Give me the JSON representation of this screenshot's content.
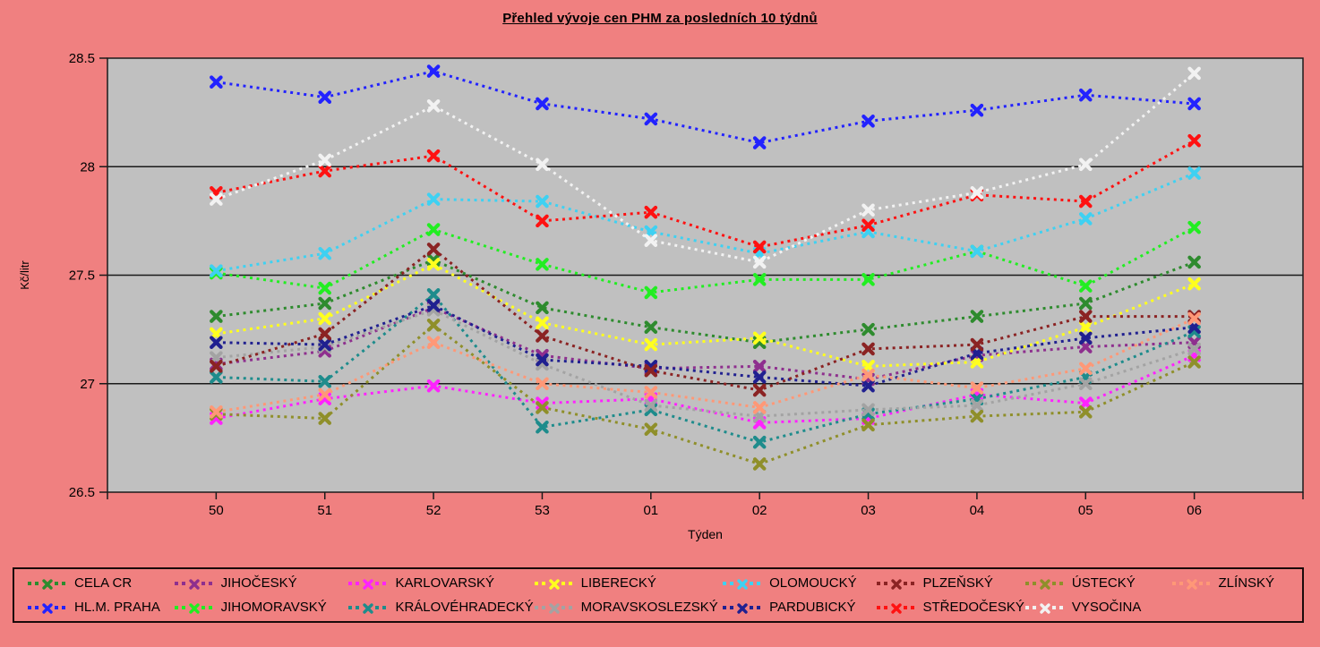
{
  "page": {
    "background_color": "#F08080",
    "plot_background_color": "#C0C0C0",
    "axis_color": "#1a1a1a",
    "gridline_color": "#1a1a1a"
  },
  "title": "Přehled vývoje cen PHM za posledních 10 týdnů",
  "chart_data": {
    "type": "line",
    "title": "Přehled vývoje cen PHM za posledních 10 týdnů",
    "xlabel": "Týden",
    "ylabel": "Kč/litr",
    "ylim": [
      26.5,
      28.5
    ],
    "yticks": [
      26.5,
      27,
      27.5,
      28,
      28.5
    ],
    "ytick_labels": [
      "26.5",
      "27",
      "27.5",
      "28",
      "28.5"
    ],
    "gridlines": [
      27,
      27.5,
      28
    ],
    "grid": "horizontal",
    "categories": [
      "50",
      "51",
      "52",
      "53",
      "01",
      "02",
      "03",
      "04",
      "05",
      "06"
    ],
    "legend_position": "bottom",
    "line_style": "dotted",
    "marker": "x",
    "series": [
      {
        "name": "CELA CR",
        "color": "#2E8B2E",
        "values": [
          27.31,
          27.37,
          27.57,
          27.35,
          27.26,
          27.19,
          27.25,
          27.31,
          27.37,
          27.56
        ]
      },
      {
        "name": "HL.M. PRAHA",
        "color": "#2222FF",
        "values": [
          28.39,
          28.32,
          28.44,
          28.29,
          28.22,
          28.11,
          28.21,
          28.26,
          28.33,
          28.29
        ]
      },
      {
        "name": "JIHOČESKÝ",
        "color": "#8E2F8E",
        "values": [
          27.09,
          27.15,
          27.35,
          27.13,
          27.07,
          27.08,
          27.02,
          27.13,
          27.17,
          27.19
        ]
      },
      {
        "name": "JIHOMORAVSKÝ",
        "color": "#21EE21",
        "values": [
          27.51,
          27.44,
          27.71,
          27.55,
          27.42,
          27.48,
          27.48,
          27.61,
          27.45,
          27.72
        ]
      },
      {
        "name": "KARLOVARSKÝ",
        "color": "#FF22FF",
        "values": [
          26.84,
          26.93,
          26.99,
          26.91,
          26.93,
          26.82,
          26.84,
          26.95,
          26.91,
          27.13
        ]
      },
      {
        "name": "KRÁLOVÉHRADECKÝ",
        "color": "#1E8C8C",
        "values": [
          27.03,
          27.01,
          27.41,
          26.8,
          26.88,
          26.73,
          26.86,
          26.93,
          27.03,
          27.24
        ]
      },
      {
        "name": "LIBERECKÝ",
        "color": "#FFFF1E",
        "values": [
          27.23,
          27.3,
          27.55,
          27.28,
          27.18,
          27.21,
          27.08,
          27.1,
          27.26,
          27.46
        ]
      },
      {
        "name": "MORAVSKOSLEZSKÝ",
        "color": "#A3A3A3",
        "values": [
          27.12,
          27.17,
          27.34,
          27.09,
          26.9,
          26.85,
          26.88,
          26.9,
          27.0,
          27.16
        ]
      },
      {
        "name": "OLOMOUCKÝ",
        "color": "#3ED1F2",
        "values": [
          27.52,
          27.6,
          27.85,
          27.84,
          27.7,
          27.6,
          27.7,
          27.61,
          27.76,
          27.97
        ]
      },
      {
        "name": "PARDUBICKÝ",
        "color": "#202090",
        "values": [
          27.19,
          27.18,
          27.36,
          27.11,
          27.08,
          27.03,
          26.99,
          27.14,
          27.21,
          27.26
        ]
      },
      {
        "name": "PLZEŇSKÝ",
        "color": "#8B2323",
        "values": [
          27.08,
          27.23,
          27.62,
          27.22,
          27.06,
          26.97,
          27.16,
          27.18,
          27.31,
          27.31
        ]
      },
      {
        "name": "STŘEDOČESKÝ",
        "color": "#FF1111",
        "values": [
          27.88,
          27.98,
          28.05,
          27.75,
          27.79,
          27.63,
          27.73,
          27.87,
          27.84,
          28.12
        ]
      },
      {
        "name": "ÚSTECKÝ",
        "color": "#8F8F2A",
        "values": [
          26.86,
          26.84,
          27.27,
          26.89,
          26.79,
          26.63,
          26.81,
          26.85,
          26.87,
          27.1
        ]
      },
      {
        "name": "VYSOČINA",
        "color": "#F2F2F2",
        "values": [
          27.85,
          28.03,
          28.28,
          28.01,
          27.66,
          27.56,
          27.8,
          27.88,
          28.01,
          28.43
        ]
      },
      {
        "name": "ZLÍNSKÝ",
        "color": "#FF9877",
        "values": [
          26.87,
          26.95,
          27.19,
          27.0,
          26.96,
          26.89,
          27.04,
          26.98,
          27.07,
          27.3
        ]
      }
    ]
  }
}
